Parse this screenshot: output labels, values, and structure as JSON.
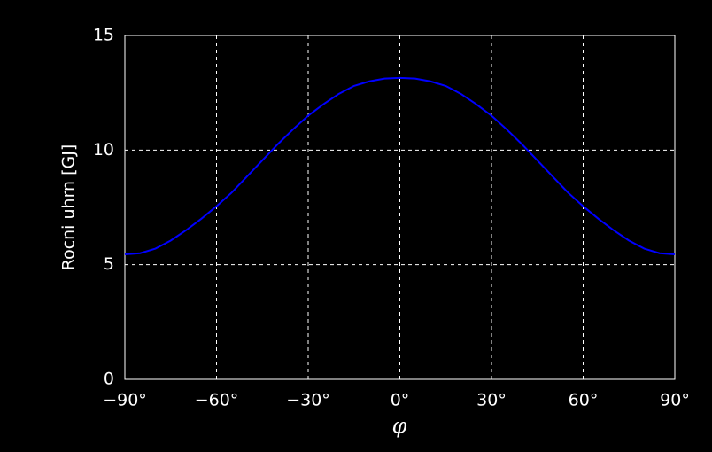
{
  "chart_data": {
    "type": "line",
    "x_label": "φ",
    "y_label": "Rocni uhrn [GJ]",
    "x": [
      -90,
      -85,
      -80,
      -75,
      -70,
      -65,
      -60,
      -55,
      -50,
      -45,
      -40,
      -35,
      -30,
      -25,
      -20,
      -15,
      -10,
      -5,
      0,
      5,
      10,
      15,
      20,
      25,
      30,
      35,
      40,
      45,
      50,
      55,
      60,
      65,
      70,
      75,
      80,
      85,
      90
    ],
    "series": [
      {
        "color": "#0000ff",
        "values": [
          5.45,
          5.5,
          5.7,
          6.05,
          6.5,
          7.0,
          7.55,
          8.15,
          8.85,
          9.55,
          10.25,
          10.9,
          11.5,
          12.0,
          12.45,
          12.8,
          13.0,
          13.12,
          13.15,
          13.12,
          13.0,
          12.8,
          12.45,
          12.0,
          11.5,
          10.9,
          10.25,
          9.55,
          8.85,
          8.15,
          7.55,
          7.0,
          6.5,
          6.05,
          5.7,
          5.5,
          5.45
        ]
      }
    ],
    "xlim": [
      -90,
      90
    ],
    "xticks": [
      {
        "value": -90,
        "label": "−90°"
      },
      {
        "value": -60,
        "label": "−60°"
      },
      {
        "value": -30,
        "label": "−30°"
      },
      {
        "value": 0,
        "label": "0°"
      },
      {
        "value": 30,
        "label": "30°"
      },
      {
        "value": 60,
        "label": "60°"
      },
      {
        "value": 90,
        "label": "90°"
      }
    ],
    "ylim": [
      0,
      15
    ],
    "yticks": [
      0,
      5,
      10,
      15
    ],
    "grid": true
  }
}
